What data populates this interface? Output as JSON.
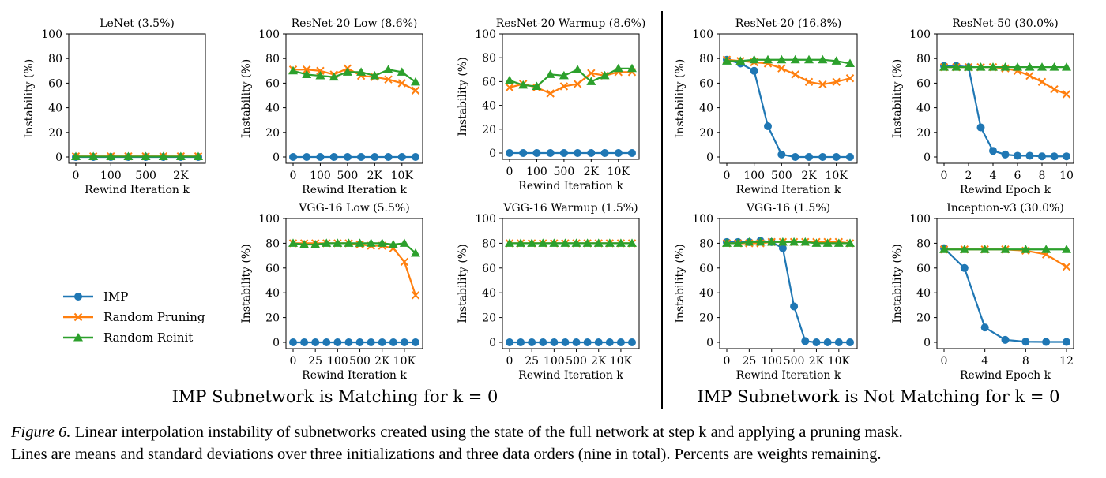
{
  "colors": {
    "IMP": "#1f77b4",
    "Random Pruning": "#ff7f0e",
    "Random Reinit": "#2ca02c"
  },
  "legend": {
    "entries": [
      {
        "name": "IMP",
        "marker": "circle"
      },
      {
        "name": "Random Pruning",
        "marker": "x"
      },
      {
        "name": "Random Reinit",
        "marker": "triangle"
      }
    ]
  },
  "groups": {
    "left": "IMP Subnetwork is Matching for k = 0",
    "right": "IMP Subnetwork is Not Matching for k = 0"
  },
  "caption": {
    "label": "Figure 6.",
    "line1": " Linear interpolation instability of subnetworks created using the state of the full network at step k and applying a pruning mask.",
    "line2": "Lines are means and standard deviations over three initializations and three data orders (nine in total). Percents are weights remaining."
  },
  "chart_data": [
    {
      "type": "line",
      "title": "LeNet (3.5%)",
      "xlabel": "Rewind Iteration k",
      "ylabel": "Instability (%)",
      "ylim": [
        0,
        100
      ],
      "yticks": [
        0,
        20,
        40,
        60,
        80,
        100
      ],
      "x": [
        0,
        25,
        100,
        250,
        500,
        1000,
        2000,
        5000
      ],
      "xticks": [
        {
          "x": 0,
          "label": "0"
        },
        {
          "x": 100,
          "label": "100"
        },
        {
          "x": 500,
          "label": "500"
        },
        {
          "x": 2000,
          "label": "2K"
        }
      ],
      "series": [
        {
          "name": "IMP",
          "values": [
            0,
            0,
            0,
            0,
            0,
            0,
            0,
            0
          ]
        },
        {
          "name": "Random Pruning",
          "values": [
            0.5,
            0.5,
            0.5,
            0.5,
            0.5,
            0.5,
            0.5,
            0.5
          ]
        },
        {
          "name": "Random Reinit",
          "values": [
            0.3,
            0.3,
            0.3,
            0.3,
            0.3,
            0.3,
            0.3,
            0.3
          ]
        }
      ]
    },
    {
      "type": "line",
      "title": "ResNet-20 Low (8.6%)",
      "xlabel": "Rewind Iteration k",
      "ylabel": "Instability (%)",
      "ylim": [
        0,
        100
      ],
      "yticks": [
        0,
        20,
        40,
        60,
        80,
        100
      ],
      "x": [
        0,
        25,
        100,
        250,
        500,
        1000,
        2000,
        5000,
        10000,
        20000
      ],
      "xticks": [
        {
          "x": 0,
          "label": "0"
        },
        {
          "x": 100,
          "label": "100"
        },
        {
          "x": 500,
          "label": "500"
        },
        {
          "x": 2000,
          "label": "2K"
        },
        {
          "x": 10000,
          "label": "10K"
        }
      ],
      "series": [
        {
          "name": "IMP",
          "values": [
            0,
            0,
            0,
            0,
            0,
            0,
            0,
            0,
            0,
            0
          ]
        },
        {
          "name": "Random Pruning",
          "values": [
            71,
            71,
            70,
            67,
            72,
            66,
            65,
            63,
            60,
            54
          ]
        },
        {
          "name": "Random Reinit",
          "values": [
            70,
            67,
            66,
            65,
            69,
            69,
            66,
            71,
            69,
            61
          ]
        }
      ]
    },
    {
      "type": "line",
      "title": "ResNet-20 Warmup (8.6%)",
      "xlabel": "Rewind Iteration k",
      "ylabel": "Instability (%)",
      "ylim": [
        0,
        100
      ],
      "yticks": [
        0,
        20,
        40,
        60,
        80,
        100
      ],
      "x": [
        0,
        25,
        100,
        250,
        500,
        1000,
        2000,
        5000,
        10000,
        20000
      ],
      "xticks": [
        {
          "x": 0,
          "label": "0"
        },
        {
          "x": 100,
          "label": "100"
        },
        {
          "x": 500,
          "label": "500"
        },
        {
          "x": 2000,
          "label": "2K"
        },
        {
          "x": 10000,
          "label": "10K"
        }
      ],
      "series": [
        {
          "name": "IMP",
          "values": [
            0,
            0,
            0,
            0,
            0,
            0,
            0,
            0,
            0,
            0
          ]
        },
        {
          "name": "Random Pruning",
          "values": [
            55,
            58,
            55,
            50,
            56,
            58,
            67,
            65,
            68,
            68
          ]
        },
        {
          "name": "Random Reinit",
          "values": [
            61,
            57,
            56,
            66,
            65,
            70,
            60,
            65,
            71,
            71
          ]
        }
      ]
    },
    {
      "type": "line",
      "title": "VGG-16 Low (5.5%)",
      "xlabel": "Rewind Iteration k",
      "ylabel": "Instability (%)",
      "ylim": [
        0,
        100
      ],
      "yticks": [
        0,
        20,
        40,
        60,
        80,
        100
      ],
      "x": [
        0,
        10,
        25,
        50,
        100,
        250,
        500,
        1000,
        2000,
        5000,
        10000,
        20000
      ],
      "xticks": [
        {
          "x": 0,
          "label": "0"
        },
        {
          "x": 25,
          "label": "25"
        },
        {
          "x": 100,
          "label": "100"
        },
        {
          "x": 500,
          "label": "500"
        },
        {
          "x": 2000,
          "label": "2K"
        },
        {
          "x": 10000,
          "label": "10K"
        }
      ],
      "series": [
        {
          "name": "IMP",
          "values": [
            0,
            0,
            0,
            0,
            0,
            0,
            0,
            0,
            0,
            0,
            0,
            0
          ]
        },
        {
          "name": "Random Pruning",
          "values": [
            80,
            80,
            80,
            80,
            80,
            80,
            79,
            78,
            78,
            76,
            65,
            38
          ]
        },
        {
          "name": "Random Reinit",
          "values": [
            80,
            79,
            79,
            80,
            80,
            80,
            80,
            80,
            80,
            79,
            80,
            72
          ]
        }
      ]
    },
    {
      "type": "line",
      "title": "VGG-16 Warmup (1.5%)",
      "xlabel": "Rewind Iteration k",
      "ylabel": "Instability (%)",
      "ylim": [
        0,
        100
      ],
      "yticks": [
        0,
        20,
        40,
        60,
        80,
        100
      ],
      "x": [
        0,
        10,
        25,
        50,
        100,
        250,
        500,
        1000,
        2000,
        5000,
        10000,
        20000
      ],
      "xticks": [
        {
          "x": 0,
          "label": "0"
        },
        {
          "x": 25,
          "label": "25"
        },
        {
          "x": 100,
          "label": "100"
        },
        {
          "x": 500,
          "label": "500"
        },
        {
          "x": 2000,
          "label": "2K"
        },
        {
          "x": 10000,
          "label": "10K"
        }
      ],
      "series": [
        {
          "name": "IMP",
          "values": [
            0,
            0,
            0,
            0,
            0,
            0,
            0,
            0,
            0,
            0,
            0,
            0
          ]
        },
        {
          "name": "Random Pruning",
          "values": [
            80,
            80,
            80,
            80,
            80,
            80,
            80,
            80,
            80,
            80,
            80,
            80
          ]
        },
        {
          "name": "Random Reinit",
          "values": [
            80,
            80,
            80,
            80,
            80,
            80,
            80,
            80,
            80,
            80,
            80,
            80
          ]
        }
      ]
    },
    {
      "type": "line",
      "title": "ResNet-20 (16.8%)",
      "xlabel": "Rewind Iteration k",
      "ylabel": "Instability (%)",
      "ylim": [
        0,
        100
      ],
      "yticks": [
        0,
        20,
        40,
        60,
        80,
        100
      ],
      "x": [
        0,
        25,
        100,
        250,
        500,
        1000,
        2000,
        5000,
        10000,
        20000
      ],
      "xticks": [
        {
          "x": 0,
          "label": "0"
        },
        {
          "x": 100,
          "label": "100"
        },
        {
          "x": 500,
          "label": "500"
        },
        {
          "x": 2000,
          "label": "2K"
        },
        {
          "x": 10000,
          "label": "10K"
        }
      ],
      "series": [
        {
          "name": "IMP",
          "values": [
            79,
            76,
            70,
            25,
            2,
            0,
            0,
            0,
            0,
            0
          ]
        },
        {
          "name": "Random Pruning",
          "values": [
            79,
            78,
            77,
            76,
            72,
            67,
            61,
            59,
            61,
            64
          ]
        },
        {
          "name": "Random Reinit",
          "values": [
            78,
            78,
            79,
            79,
            79,
            79,
            79,
            79,
            78,
            76
          ]
        }
      ]
    },
    {
      "type": "line",
      "title": "ResNet-50 (30.0%)",
      "xlabel": "Rewind Epoch k",
      "ylabel": "Instability (%)",
      "ylim": [
        0,
        100
      ],
      "yticks": [
        0,
        20,
        40,
        60,
        80,
        100
      ],
      "x": [
        0,
        1,
        2,
        3,
        4,
        5,
        6,
        7,
        8,
        9,
        10
      ],
      "xticks": [
        {
          "x": 0,
          "label": "0"
        },
        {
          "x": 2,
          "label": "2"
        },
        {
          "x": 4,
          "label": "4"
        },
        {
          "x": 6,
          "label": "6"
        },
        {
          "x": 8,
          "label": "8"
        },
        {
          "x": 10,
          "label": "10"
        }
      ],
      "series": [
        {
          "name": "IMP",
          "values": [
            74,
            74,
            73,
            24,
            5,
            2,
            1,
            1,
            0.5,
            0.5,
            0.5
          ]
        },
        {
          "name": "Random Pruning",
          "values": [
            73,
            73,
            73,
            73,
            73,
            72,
            70,
            66,
            61,
            55,
            51
          ]
        },
        {
          "name": "Random Reinit",
          "values": [
            73,
            73,
            73,
            73,
            73,
            73,
            73,
            73,
            73,
            73,
            73
          ]
        }
      ]
    },
    {
      "type": "line",
      "title": "VGG-16 (1.5%)",
      "xlabel": "Rewind Iteration k",
      "ylabel": "Instability (%)",
      "ylim": [
        0,
        100
      ],
      "yticks": [
        0,
        20,
        40,
        60,
        80,
        100
      ],
      "x": [
        0,
        10,
        25,
        50,
        100,
        250,
        500,
        1000,
        2000,
        5000,
        10000,
        20000
      ],
      "xticks": [
        {
          "x": 0,
          "label": "0"
        },
        {
          "x": 25,
          "label": "25"
        },
        {
          "x": 100,
          "label": "100"
        },
        {
          "x": 500,
          "label": "500"
        },
        {
          "x": 2000,
          "label": "2K"
        },
        {
          "x": 10000,
          "label": "10K"
        }
      ],
      "series": [
        {
          "name": "IMP",
          "values": [
            81,
            81,
            81,
            82,
            81,
            76,
            29,
            1,
            0,
            0,
            0,
            0
          ]
        },
        {
          "name": "Random Pruning",
          "values": [
            80,
            80,
            80,
            80,
            81,
            81,
            81,
            81,
            81,
            81,
            81,
            80
          ]
        },
        {
          "name": "Random Reinit",
          "values": [
            80,
            80,
            81,
            81,
            81,
            81,
            81,
            81,
            80,
            80,
            80,
            80
          ]
        }
      ]
    },
    {
      "type": "line",
      "title": "Inception-v3 (30.0%)",
      "xlabel": "Rewind Epoch k",
      "ylabel": "Instability (%)",
      "ylim": [
        0,
        100
      ],
      "yticks": [
        0,
        20,
        40,
        60,
        80,
        100
      ],
      "x": [
        0,
        2,
        4,
        6,
        8,
        10,
        12
      ],
      "xticks": [
        {
          "x": 0,
          "label": "0"
        },
        {
          "x": 4,
          "label": "4"
        },
        {
          "x": 8,
          "label": "8"
        },
        {
          "x": 12,
          "label": "12"
        }
      ],
      "series": [
        {
          "name": "IMP",
          "values": [
            76,
            60,
            12,
            2,
            0.5,
            0.3,
            0.3
          ]
        },
        {
          "name": "Random Pruning",
          "values": [
            75,
            75,
            75,
            75,
            74,
            71,
            61
          ]
        },
        {
          "name": "Random Reinit",
          "values": [
            75,
            75,
            75,
            75,
            75,
            75,
            75
          ]
        }
      ]
    }
  ]
}
